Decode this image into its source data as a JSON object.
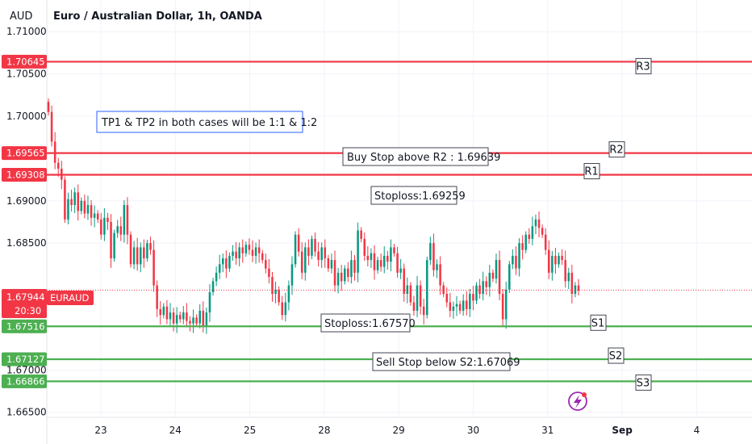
{
  "header": {
    "currency_badge": "AUD",
    "title": "Euro / Australian Dollar, 1h, OANDA"
  },
  "chart_data": {
    "type": "candlestick",
    "title": "Euro / Australian Dollar, 1h, OANDA",
    "y_ticks": [
      "1.71000",
      "1.70500",
      "1.70000",
      "1.69000",
      "1.68500",
      "1.67000",
      "1.66500"
    ],
    "x_ticks": [
      "23",
      "24",
      "25",
      "28",
      "29",
      "30",
      "31",
      "Sep",
      "4"
    ],
    "ylim": [
      1.6644,
      1.7126
    ],
    "current_price": {
      "value": "1.67944",
      "symbol": "EURAUD",
      "countdown": "20:30"
    },
    "levels": [
      {
        "label": "R3",
        "value": 1.70645,
        "tag": "1.70645",
        "color": "#f23645"
      },
      {
        "label": "R2",
        "value": 1.69565,
        "tag": "1.69565",
        "color": "#f23645"
      },
      {
        "label": "R1",
        "value": 1.69308,
        "tag": "1.69308",
        "color": "#f23645"
      },
      {
        "label": "S1",
        "value": 1.67516,
        "tag": "1.67516",
        "color": "#4caf50"
      },
      {
        "label": "S2",
        "value": 1.67127,
        "tag": "1.67127",
        "color": "#4caf50"
      },
      {
        "label": "S3",
        "value": 1.66866,
        "tag": "1.66866",
        "color": "#4caf50"
      }
    ],
    "notes": {
      "tp": "TP1 & TP2 in both cases will be 1:1 & 1:2",
      "buy": "Buy Stop above R2 : 1.69639",
      "stoploss_buy": "Stoploss:1.69259",
      "stoploss_sell": "Stoploss:1.67570",
      "sell": "Sell Stop below S2:1.67069"
    },
    "colors": {
      "up": "#089981",
      "down": "#f23645",
      "support": "#4caf50",
      "resistance": "#f23645",
      "lightning": "#9c27b0"
    },
    "candle_closes": [
      1.7005,
      1.697,
      1.6945,
      1.6938,
      1.6925,
      1.6878,
      1.6902,
      1.6895,
      1.691,
      1.6888,
      1.69,
      1.6885,
      1.6895,
      1.688,
      1.6885,
      1.6878,
      1.686,
      1.688,
      1.6875,
      1.6832,
      1.6862,
      1.687,
      1.686,
      1.6895,
      1.686,
      1.6825,
      1.6845,
      1.6825,
      1.6845,
      1.6832,
      1.685,
      1.6842,
      1.68,
      1.6772,
      1.6765,
      1.6775,
      1.676,
      1.6768,
      1.6755,
      1.6765,
      1.676,
      1.6768,
      1.6758,
      1.6755,
      1.6762,
      1.6755,
      1.677,
      1.6752,
      1.6768,
      1.6792,
      1.6805,
      1.6815,
      1.6825,
      1.6832,
      1.682,
      1.6835,
      1.684,
      1.6832,
      1.6845,
      1.6838,
      1.6848,
      1.6842,
      1.6835,
      1.6845,
      1.6838,
      1.683,
      1.682,
      1.681,
      1.679,
      1.6795,
      1.678,
      1.6765,
      1.678,
      1.68,
      1.6825,
      1.686,
      1.684,
      1.6815,
      1.6845,
      1.6835,
      1.6855,
      1.684,
      1.683,
      1.6845,
      1.6832,
      1.682,
      1.683,
      1.68,
      1.6815,
      1.6805,
      1.682,
      1.681,
      1.683,
      1.6815,
      1.6865,
      1.6855,
      1.6835,
      1.683,
      1.6838,
      1.6818,
      1.683,
      1.6822,
      1.6835,
      1.6828,
      1.6845,
      1.6838,
      1.6815,
      1.682,
      1.679,
      1.68,
      1.678,
      1.677,
      1.68,
      1.6775,
      1.6765,
      1.683,
      1.685,
      1.6818,
      1.6825,
      1.68,
      1.679,
      1.678,
      1.677,
      1.6775,
      1.6778,
      1.677,
      1.6782,
      1.6772,
      1.679,
      1.6782,
      1.68,
      1.679,
      1.6805,
      1.6798,
      1.6815,
      1.6808,
      1.683,
      1.679,
      1.676,
      1.6795,
      1.6825,
      1.6835,
      1.682,
      1.685,
      1.6842,
      1.686,
      1.6855,
      1.687,
      1.6878,
      1.6868,
      1.686,
      1.6842,
      1.6815,
      1.6835,
      1.6825,
      1.6835,
      1.683,
      1.6805,
      1.6815,
      1.679,
      1.68,
      1.6794
    ]
  }
}
